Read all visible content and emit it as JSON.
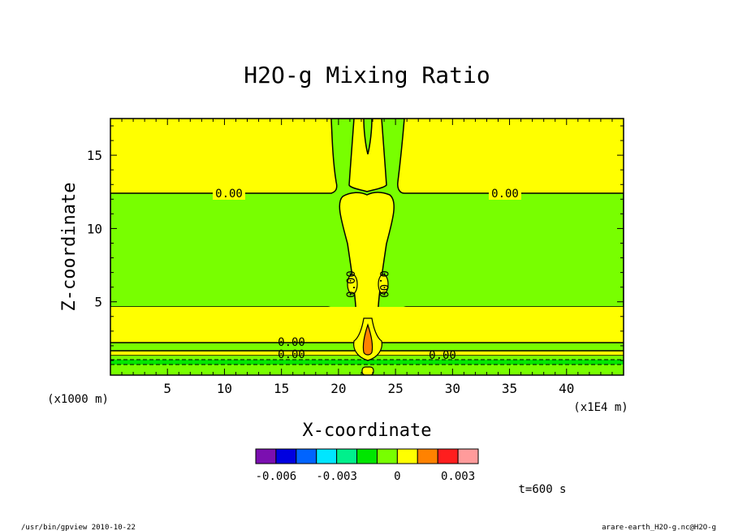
{
  "chart_data": {
    "type": "heatmap",
    "title": "H2O-g Mixing Ratio",
    "xlabel": "X-coordinate",
    "ylabel": "Z-coordinate",
    "x_unit": "(x1E4 m)",
    "y_unit": "(x1000 m)",
    "xlim": [
      0,
      45
    ],
    "ylim": [
      0,
      17.5
    ],
    "x_ticks": [
      5,
      10,
      15,
      20,
      25,
      30,
      35,
      40
    ],
    "y_ticks": [
      5,
      10,
      15
    ],
    "grid": false,
    "contour_labels": [
      "0.00",
      "0.00",
      "0.00",
      "0.00",
      "0.00",
      "0.00",
      "0.00",
      "0.00"
    ],
    "colorbar": {
      "colors": [
        "#7b0fb0",
        "#0000e0",
        "#0064ff",
        "#00e6ff",
        "#00f08c",
        "#00e600",
        "#78ff00",
        "#ffff00",
        "#ff8200",
        "#ff1e1e",
        "#ff9b9b"
      ],
      "tick_labels": [
        "-0.006",
        "-0.003",
        "0",
        "0.003"
      ]
    },
    "time_label": "t=600 s"
  },
  "footer": {
    "left": "/usr/bin/gpview  2010-10-22",
    "right": "arare-earth_H2O-g.nc@H2O-g"
  },
  "colors": {
    "yellow": "#ffff00",
    "green": "#78ff00",
    "bright_green": "#00e600",
    "orange": "#ff8200"
  }
}
